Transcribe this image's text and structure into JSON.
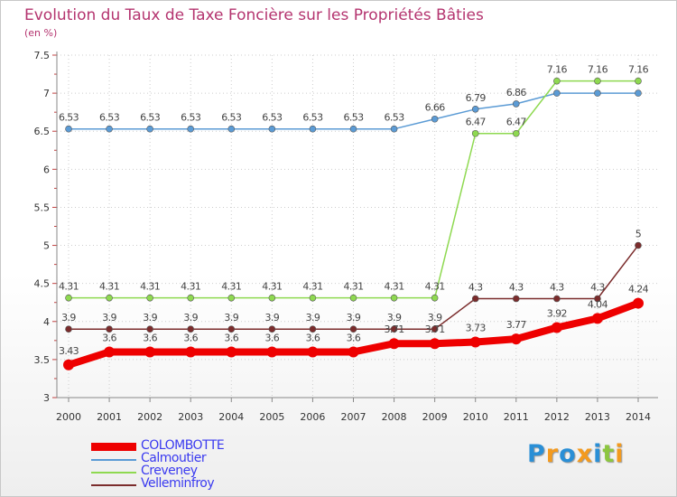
{
  "chart_data": {
    "type": "line",
    "title": "Evolution du Taux de Taxe Foncière sur les Propriétés Bâties",
    "subtitle": "(en %)",
    "x": [
      "2000",
      "2001",
      "2002",
      "2003",
      "2004",
      "2005",
      "2006",
      "2007",
      "2008",
      "2009",
      "2010",
      "2011",
      "2012",
      "2013",
      "2014"
    ],
    "ylim": [
      3,
      7.5
    ],
    "yticks": [
      "3",
      "3.5",
      "4",
      "4.5",
      "5",
      "5.5",
      "6",
      "6.5",
      "7",
      "7.5"
    ],
    "series": [
      {
        "name": "COLOMBOTTE",
        "color": "#ee0000",
        "values": [
          3.43,
          3.6,
          3.6,
          3.6,
          3.6,
          3.6,
          3.6,
          3.6,
          3.71,
          3.71,
          3.73,
          3.77,
          3.92,
          4.04,
          4.24
        ],
        "labels": [
          "3.43",
          "3.6",
          "3.6",
          "3.6",
          "3.6",
          "3.6",
          "3.6",
          "3.6",
          "3.71",
          "3.71",
          "3.73",
          "3.77",
          "3.92",
          "4.04",
          "4.24"
        ]
      },
      {
        "name": "Calmoutier",
        "color": "#5b9bd5",
        "values": [
          6.53,
          6.53,
          6.53,
          6.53,
          6.53,
          6.53,
          6.53,
          6.53,
          6.53,
          6.66,
          6.79,
          6.86,
          7,
          7,
          7
        ],
        "labels": [
          "6.53",
          "6.53",
          "6.53",
          "6.53",
          "6.53",
          "6.53",
          "6.53",
          "6.53",
          "6.53",
          "6.66",
          "6.79",
          "6.86",
          "",
          "",
          ""
        ]
      },
      {
        "name": "Creveney",
        "color": "#8ed950",
        "values": [
          4.31,
          4.31,
          4.31,
          4.31,
          4.31,
          4.31,
          4.31,
          4.31,
          4.31,
          4.31,
          6.47,
          6.47,
          7.16,
          7.16,
          7.16
        ],
        "labels": [
          "4.31",
          "4.31",
          "4.31",
          "4.31",
          "4.31",
          "4.31",
          "4.31",
          "4.31",
          "4.31",
          "4.31",
          "6.47",
          "6.47",
          "7.16",
          "7.16",
          "7.16"
        ]
      },
      {
        "name": "Velleminfroy",
        "color": "#7b2c2c",
        "values": [
          3.9,
          3.9,
          3.9,
          3.9,
          3.9,
          3.9,
          3.9,
          3.9,
          3.9,
          3.9,
          4.3,
          4.3,
          4.3,
          4.3,
          5
        ],
        "labels": [
          "3.9",
          "3.9",
          "3.9",
          "3.9",
          "3.9",
          "3.9",
          "3.9",
          "3.9",
          "3.9",
          "3.9",
          "4.3",
          "4.3",
          "4.3",
          "4.3",
          "5"
        ]
      }
    ]
  },
  "logo": {
    "letters": [
      {
        "char": "P",
        "color": "#2a8fd6"
      },
      {
        "char": "r",
        "color": "#f39a1e"
      },
      {
        "char": "o",
        "color": "#2a8fd6"
      },
      {
        "char": "x",
        "color": "#f39a1e"
      },
      {
        "char": "i",
        "color": "#2a8fd6"
      },
      {
        "char": "t",
        "color": "#8cc63f"
      },
      {
        "char": "i",
        "color": "#f39a1e"
      }
    ]
  }
}
